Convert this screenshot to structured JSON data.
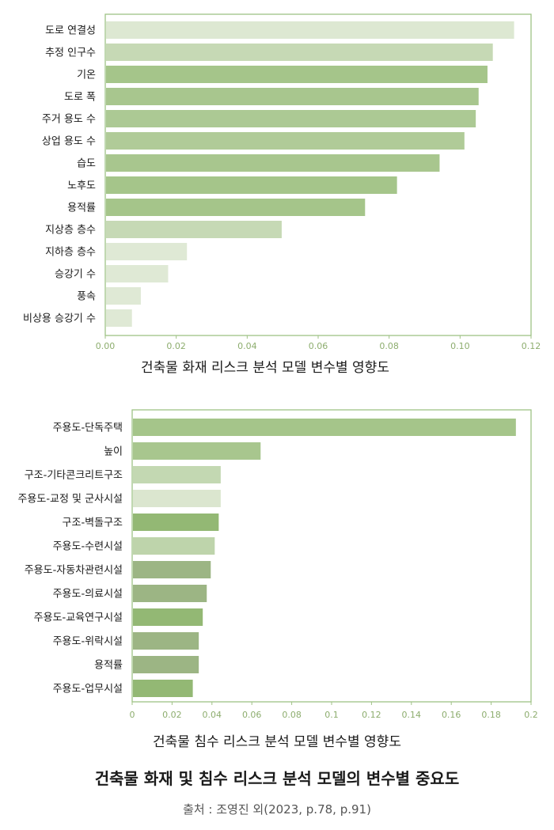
{
  "figure": {
    "title": "건축물 화재 및 침수 리스크 분석 모델의 변수별 중요도",
    "source": "출처 : 조영진 외(2023, p.78, p.91)"
  },
  "chart_data": [
    {
      "type": "bar",
      "orientation": "horizontal",
      "title": "건축물 화재 리스크 분석 모델 변수별 영향도",
      "categories": [
        "도로 연결성",
        "추정 인구수",
        "기온",
        "도로 폭",
        "주거 용도 수",
        "상업 용도 수",
        "습도",
        "노후도",
        "용적률",
        "지상층 층수",
        "지하층 층수",
        "승강기 수",
        "풍속",
        "비상용 승강기 수"
      ],
      "values": [
        0.115,
        0.109,
        0.1075,
        0.105,
        0.1042,
        0.101,
        0.094,
        0.082,
        0.073,
        0.0495,
        0.0228,
        0.0175,
        0.0098,
        0.0073
      ],
      "colors": [
        "#dde8d2",
        "#c6d9b5",
        "#a5c58a",
        "#a8c68e",
        "#acc994",
        "#b0cb98",
        "#a8c68e",
        "#a5c58a",
        "#a5c58a",
        "#c6d9b5",
        "#dfe9d5",
        "#dfe9d5",
        "#dfe9d5",
        "#dfe9d5"
      ],
      "xlim": [
        0,
        0.12
      ],
      "xticks": [
        0,
        0.02,
        0.04,
        0.06,
        0.08,
        0.1,
        0.12
      ],
      "xtick_labels": [
        "0.00",
        "0.02",
        "0.04",
        "0.06",
        "0.08",
        "0.10",
        "0.12"
      ],
      "grid": false
    },
    {
      "type": "bar",
      "orientation": "horizontal",
      "title": "건축물 침수 리스크 분석 모델 변수별 영향도",
      "categories": [
        "주용도-단독주택",
        "높이",
        "구조-기타콘크리트구조",
        "주용도-교정 및 군사시설",
        "구조-벽돌구조",
        "주용도-수련시설",
        "주용도-자동차관련시설",
        "주용도-의료시설",
        "주용도-교육연구시설",
        "주용도-위락시설",
        "용적률",
        "주용도-업무시설"
      ],
      "values": [
        0.192,
        0.064,
        0.044,
        0.044,
        0.043,
        0.041,
        0.039,
        0.037,
        0.035,
        0.033,
        0.033,
        0.03
      ],
      "colors": [
        "#a5c58a",
        "#a8c68e",
        "#c3d8b2",
        "#dbe6cf",
        "#93b874",
        "#bed4ab",
        "#9cb584",
        "#9cb584",
        "#93b874",
        "#9cb584",
        "#9cb584",
        "#93b874"
      ],
      "xlim": [
        0,
        0.2
      ],
      "xticks": [
        0,
        0.02,
        0.04,
        0.06,
        0.08,
        0.1,
        0.12,
        0.14,
        0.16,
        0.18,
        0.2
      ],
      "xtick_labels": [
        "0",
        "0.02",
        "0.04",
        "0.06",
        "0.08",
        "0.1",
        "0.12",
        "0.14",
        "0.16",
        "0.18",
        "0.2"
      ],
      "grid": false
    }
  ]
}
